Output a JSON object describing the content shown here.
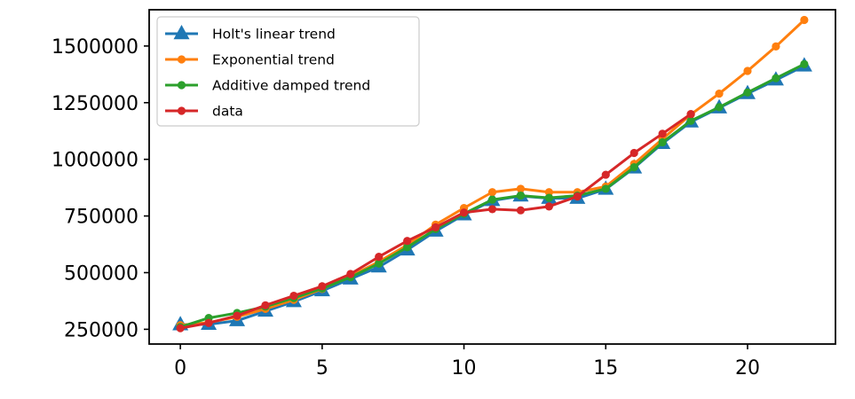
{
  "chart_data": {
    "type": "line",
    "title": "",
    "xlabel": "",
    "ylabel": "",
    "xlim": [
      -1.1,
      23.1
    ],
    "ylim": [
      185000,
      1660000
    ],
    "xticks": [
      0,
      5,
      10,
      15,
      20
    ],
    "yticks": [
      250000,
      500000,
      750000,
      1000000,
      1250000,
      1500000
    ],
    "xtick_labels": [
      "0",
      "5",
      "10",
      "15",
      "20"
    ],
    "ytick_labels": [
      "250000",
      "500000",
      "750000",
      "1000000",
      "1250000",
      "1500000"
    ],
    "grid": false,
    "legend_position": "upper-left",
    "series": [
      {
        "name": "Holt's linear trend",
        "color": "#1f77b4",
        "marker": "triangle",
        "x": [
          0,
          1,
          2,
          3,
          4,
          5,
          6,
          7,
          8,
          9,
          10,
          11,
          12,
          13,
          14,
          15,
          16,
          17,
          18,
          19,
          20,
          21,
          22
        ],
        "values": [
          270000,
          272000,
          288000,
          330000,
          372000,
          420000,
          472000,
          525000,
          600000,
          683000,
          755000,
          818000,
          838000,
          828000,
          828000,
          868000,
          962000,
          1070000,
          1165000,
          1227000,
          1290000,
          1350000,
          1412000
        ]
      },
      {
        "name": "Exponential trend",
        "color": "#ff7f0e",
        "marker": "circle",
        "x": [
          0,
          1,
          2,
          3,
          4,
          5,
          6,
          7,
          8,
          9,
          10,
          11,
          12,
          13,
          14,
          15,
          16,
          17,
          18,
          19,
          20,
          21,
          22
        ],
        "values": [
          268000,
          280000,
          305000,
          340000,
          380000,
          428000,
          485000,
          548000,
          622000,
          712000,
          785000,
          855000,
          870000,
          855000,
          855000,
          880000,
          980000,
          1090000,
          1198000,
          1290000,
          1390000,
          1498000,
          1615000
        ]
      },
      {
        "name": "Additive damped trend",
        "color": "#2ca02c",
        "marker": "circle",
        "x": [
          0,
          1,
          2,
          3,
          4,
          5,
          6,
          7,
          8,
          9,
          10,
          11,
          12,
          13,
          14,
          15,
          16,
          17,
          18,
          19,
          20,
          21,
          22
        ],
        "values": [
          260000,
          300000,
          322000,
          350000,
          388000,
          430000,
          480000,
          540000,
          612000,
          692000,
          760000,
          822000,
          840000,
          830000,
          840000,
          870000,
          965000,
          1075000,
          1170000,
          1230000,
          1295000,
          1358000,
          1420000
        ]
      },
      {
        "name": "data",
        "color": "#d62728",
        "marker": "circle",
        "x": [
          0,
          1,
          2,
          3,
          4,
          5,
          6,
          7,
          8,
          9,
          10,
          11,
          12,
          13,
          14,
          15,
          16,
          17,
          18
        ],
        "values": [
          255000,
          278000,
          310000,
          356000,
          398000,
          440000,
          494000,
          570000,
          640000,
          700000,
          765000,
          780000,
          775000,
          792000,
          836000,
          932000,
          1028000,
          1113000,
          1200000
        ]
      }
    ]
  }
}
